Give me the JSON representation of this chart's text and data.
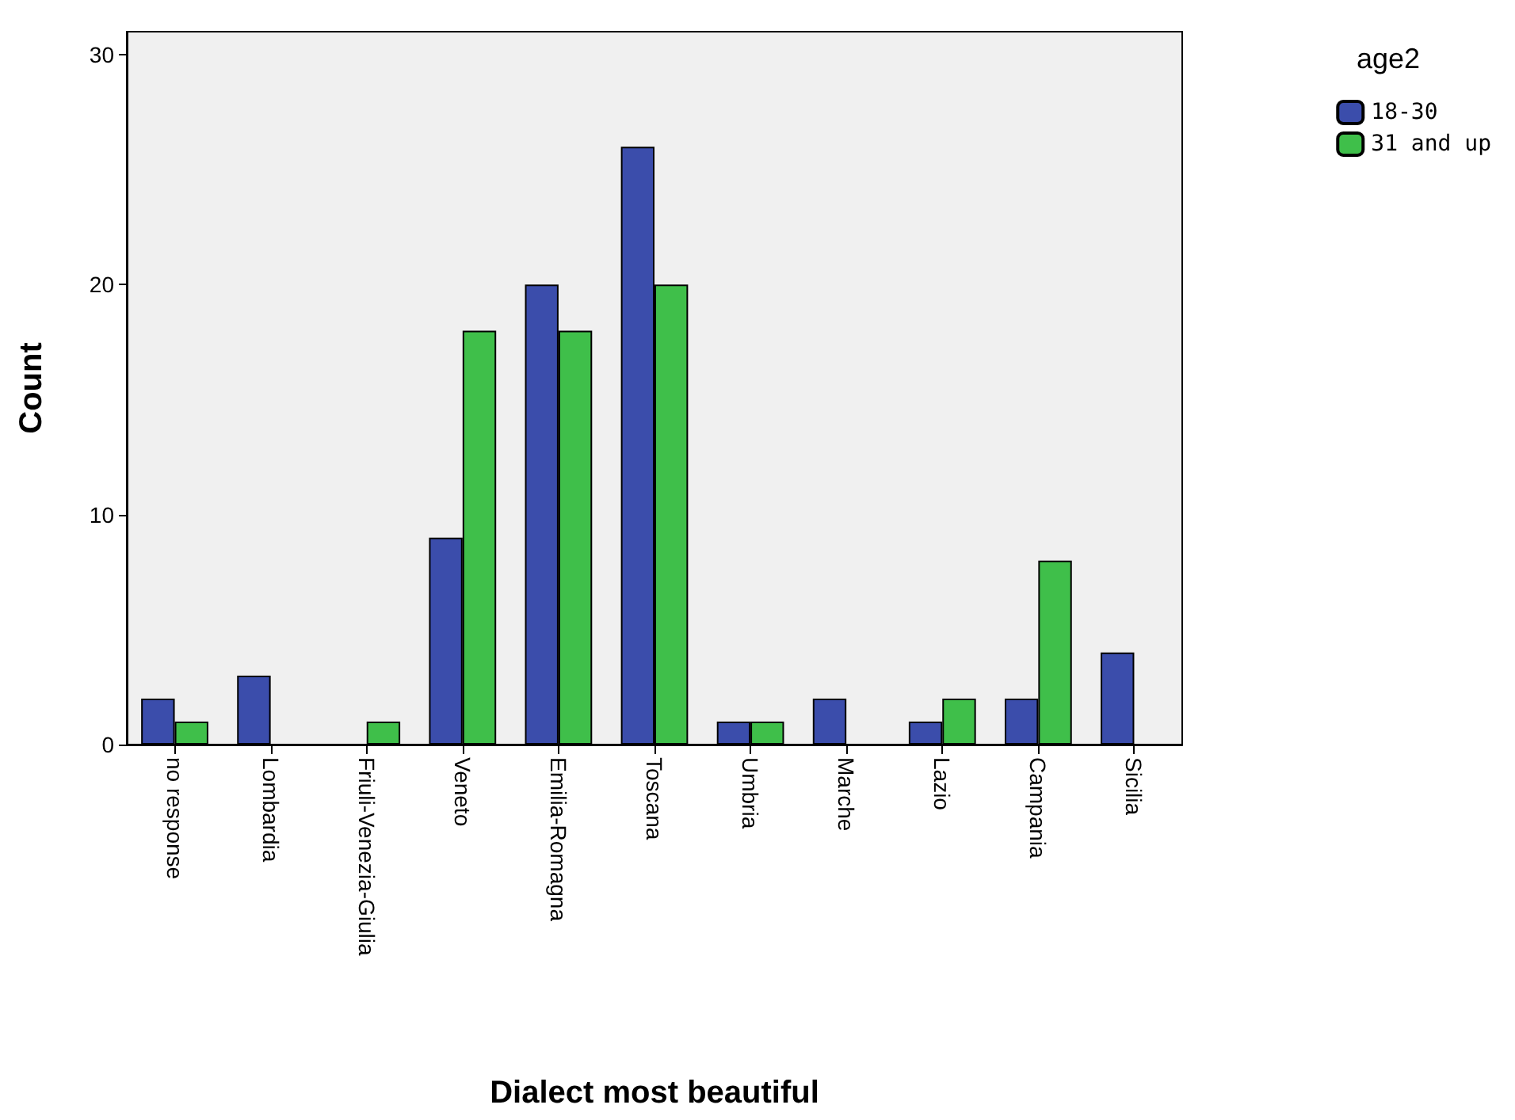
{
  "chart_data": {
    "type": "bar",
    "xlabel": "Dialect most beautiful",
    "ylabel": "Count",
    "legend_title": "age2",
    "legend": "top right",
    "grid": false,
    "categories": [
      "no response",
      "Lombardia",
      "Friuli-Venezia-Giulia",
      "Veneto",
      "Emilia-Romagna",
      "Toscana",
      "Umbria",
      "Marche",
      "Lazio",
      "Campania",
      "Sicilia"
    ],
    "series": [
      {
        "name": "18-30",
        "color": "#3b4dab",
        "values": [
          2,
          3,
          null,
          9,
          20,
          26,
          1,
          2,
          1,
          2,
          4
        ]
      },
      {
        "name": "31 and up",
        "color": "#3fbf4a",
        "values": [
          1,
          null,
          1,
          18,
          18,
          20,
          1,
          null,
          2,
          8,
          null
        ]
      }
    ],
    "ylim": [
      0,
      31
    ],
    "yticks": [
      0,
      10,
      20,
      30
    ]
  }
}
